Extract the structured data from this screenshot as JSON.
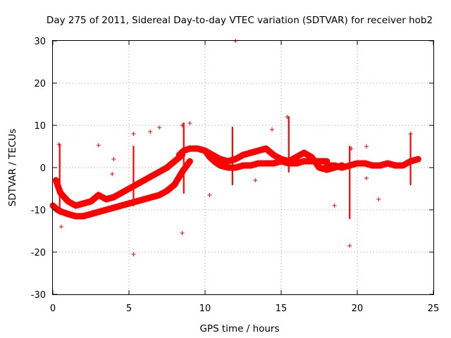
{
  "chart_data": {
    "type": "scatter",
    "title": "Day 275 of 2011, Sidereal Day-to-day VTEC variation (SDTVAR) for receiver hob2",
    "xlabel": "GPS time / hours",
    "ylabel": "SDTVAR / TECUs",
    "xlim": [
      0,
      25
    ],
    "ylim": [
      -30,
      30
    ],
    "xticks": [
      0,
      5,
      10,
      15,
      20,
      25
    ],
    "yticks": [
      -30,
      -20,
      -10,
      0,
      10,
      20,
      30
    ],
    "xtick_labels": [
      "0",
      "5",
      "10",
      "15",
      "20",
      "25"
    ],
    "ytick_labels": [
      "-30",
      "-20",
      "-10",
      "0",
      "10",
      "20",
      "30"
    ],
    "grid": true,
    "marker": "+",
    "series": [
      {
        "name": "SDTVAR",
        "color": "#ff0000",
        "dense_bands": [
          {
            "x": [
              0,
              0.3,
              0.6,
              1,
              1.5,
              2,
              2.5,
              3,
              3.5,
              4,
              4.5,
              5,
              5.5,
              6,
              6.5,
              7,
              7.5,
              8,
              8.5,
              9
            ],
            "y": [
              -9,
              -10,
              -10.5,
              -11,
              -11.5,
              -11.5,
              -11,
              -10.5,
              -10,
              -9.5,
              -9,
              -8.5,
              -8,
              -7.5,
              -7,
              -6.5,
              -5.5,
              -4,
              -1,
              1.5
            ]
          },
          {
            "x": [
              0.2,
              0.5,
              1,
              1.5,
              2,
              2.5,
              3,
              3.5,
              4,
              4.5,
              5,
              5.5,
              6,
              6.5,
              7,
              7.5,
              8,
              8.5
            ],
            "y": [
              -3,
              -6,
              -8,
              -9,
              -8.5,
              -8,
              -6.5,
              -7.5,
              -7,
              -6,
              -5,
              -4,
              -3,
              -2,
              -1,
              0,
              1.5,
              3
            ]
          },
          {
            "x": [
              8.3,
              8.6,
              9,
              9.5,
              10,
              10.3,
              10.6,
              11,
              11.5,
              12,
              12.5,
              13,
              13.5,
              14,
              14.5,
              15,
              15.5,
              16,
              16.5,
              17,
              17.5,
              18
            ],
            "y": [
              3,
              4,
              4.5,
              4.5,
              4,
              2.5,
              1.5,
              0.5,
              0,
              0,
              0.5,
              0.5,
              1,
              1,
              1,
              1.5,
              1,
              1,
              1.5,
              1.5,
              1.5,
              1.5
            ]
          },
          {
            "x": [
              10,
              10.5,
              11,
              11.5,
              12,
              12.5,
              13,
              13.5,
              14,
              14.5,
              15,
              15.5,
              16,
              16.5,
              17,
              17.5,
              18,
              18.5,
              19
            ],
            "y": [
              4,
              3,
              2,
              1.5,
              2,
              3,
              3.5,
              4,
              4.5,
              3,
              2,
              1.5,
              2.5,
              3.5,
              2.5,
              0,
              -0.5,
              0,
              0.5
            ]
          },
          {
            "x": [
              18,
              18.5,
              19,
              19.5,
              20,
              20.5,
              21,
              21.5,
              22,
              22.5,
              23,
              23.5,
              24
            ],
            "y": [
              0.5,
              0.5,
              0,
              0.5,
              1,
              1,
              0.5,
              0.5,
              1,
              0.5,
              0.5,
              1.5,
              2
            ]
          }
        ],
        "spikes": [
          {
            "x": 0.45,
            "ymin": -11,
            "ymax": 5.5
          },
          {
            "x": 5.3,
            "ymin": -9,
            "ymax": 5
          },
          {
            "x": 8.6,
            "ymin": -6,
            "ymax": 10.5
          },
          {
            "x": 11.8,
            "ymin": -4,
            "ymax": 9.5
          },
          {
            "x": 15.5,
            "ymin": -1,
            "ymax": 12
          },
          {
            "x": 19.5,
            "ymin": -12,
            "ymax": 5
          },
          {
            "x": 23.5,
            "ymin": -4,
            "ymax": 8
          }
        ],
        "points": [
          {
            "x": 12,
            "y": 30
          },
          {
            "x": 15.4,
            "y": 12
          },
          {
            "x": 9,
            "y": 10.5
          },
          {
            "x": 8.5,
            "y": 10
          },
          {
            "x": 7,
            "y": 9.5
          },
          {
            "x": 14.4,
            "y": 9
          },
          {
            "x": 6.4,
            "y": 8.5
          },
          {
            "x": 5.3,
            "y": 8
          },
          {
            "x": 23.5,
            "y": 8
          },
          {
            "x": 0.4,
            "y": 5.5
          },
          {
            "x": 3,
            "y": 5.3
          },
          {
            "x": 20.6,
            "y": 5
          },
          {
            "x": 19.6,
            "y": 4.5
          },
          {
            "x": 4,
            "y": 2
          },
          {
            "x": 3.9,
            "y": -1.5
          },
          {
            "x": 20.6,
            "y": -2.5
          },
          {
            "x": 13.3,
            "y": -3
          },
          {
            "x": 10.3,
            "y": -6.5
          },
          {
            "x": 21.4,
            "y": -7.5
          },
          {
            "x": 18.5,
            "y": -9
          },
          {
            "x": 0.55,
            "y": -14
          },
          {
            "x": 8.5,
            "y": -15.5
          },
          {
            "x": 19.5,
            "y": -18.5
          },
          {
            "x": 5.3,
            "y": -20.5
          }
        ]
      }
    ]
  }
}
